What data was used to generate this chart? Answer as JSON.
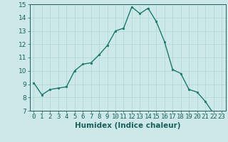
{
  "x": [
    0,
    1,
    2,
    3,
    4,
    5,
    6,
    7,
    8,
    9,
    10,
    11,
    12,
    13,
    14,
    15,
    16,
    17,
    18,
    19,
    20,
    21,
    22,
    23
  ],
  "y": [
    9.1,
    8.2,
    8.6,
    8.7,
    8.8,
    10.0,
    10.5,
    10.6,
    11.2,
    11.9,
    13.0,
    13.2,
    14.8,
    14.3,
    14.7,
    13.7,
    12.2,
    10.1,
    9.8,
    8.6,
    8.4,
    7.7,
    6.8,
    6.8
  ],
  "line_color": "#1a7a6e",
  "marker": "o",
  "markersize": 1.8,
  "linewidth": 1.0,
  "xlabel": "Humidex (Indice chaleur)",
  "xlim": [
    -0.5,
    23.5
  ],
  "ylim": [
    7,
    15
  ],
  "yticks": [
    7,
    8,
    9,
    10,
    11,
    12,
    13,
    14,
    15
  ],
  "xticks": [
    0,
    1,
    2,
    3,
    4,
    5,
    6,
    7,
    8,
    9,
    10,
    11,
    12,
    13,
    14,
    15,
    16,
    17,
    18,
    19,
    20,
    21,
    22,
    23
  ],
  "bg_color": "#cde8e8",
  "grid_color": "#b0d4d4",
  "tick_color": "#1a5f5a",
  "label_color": "#1a5f5a",
  "xlabel_fontsize": 7.5,
  "tick_fontsize": 6.5
}
